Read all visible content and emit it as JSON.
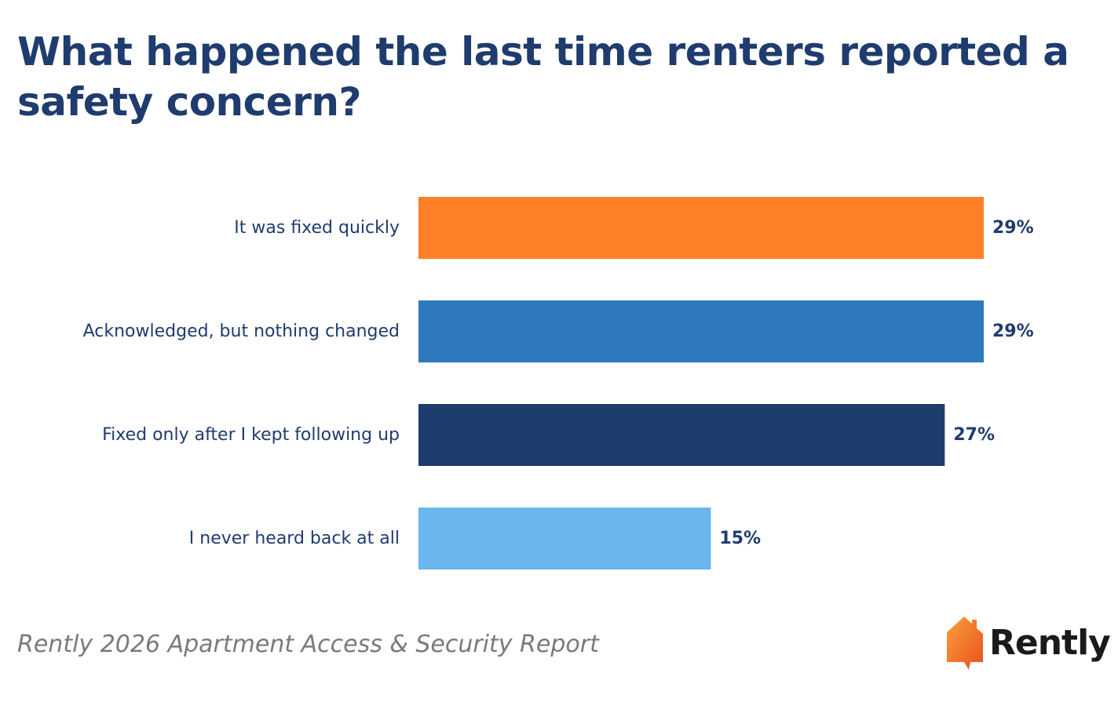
{
  "chart_data": {
    "type": "bar",
    "orientation": "horizontal",
    "title": "What happened the last time renters reported a safety concern?",
    "categories": [
      "It was fixed quickly",
      "Acknowledged, but nothing changed",
      "Fixed only after I kept following up",
      "I never heard back at all"
    ],
    "values": [
      29,
      29,
      27,
      15
    ],
    "data_labels": [
      "29%",
      "29%",
      "27%",
      "15%"
    ],
    "bar_colors": [
      "#ff7f27",
      "#2e78bd",
      "#1f3c6e",
      "#69b7ee"
    ],
    "xlim": [
      0,
      29
    ],
    "grid": false,
    "legend": "none"
  },
  "footer": {
    "source": "Rently 2026 Apartment Access & Security Report",
    "brand": "Rently"
  },
  "colors": {
    "title": "#1f3c6e",
    "category_label": "#1f3c6e",
    "value_label": "#1f3c6e",
    "source_text": "#7a7a7a",
    "logo_orange": "#f47a2a"
  }
}
